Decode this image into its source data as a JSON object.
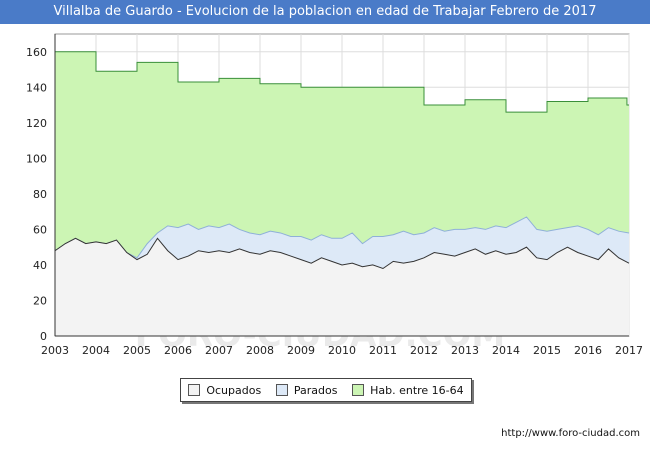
{
  "title": "Villalba de Guardo - Evolucion de la poblacion en edad de Trabajar Febrero de 2017",
  "watermark": "FORO-CIUDAD.COM",
  "source_url": "http://www.foro-ciudad.com",
  "colors": {
    "title_bg": "#4a7bc8",
    "hab": "#ccf5b4",
    "hab_line": "#3a8f3a",
    "parados": "#dde9f7",
    "parados_line": "#8fb0d8",
    "ocupados": "#f3f3f3",
    "ocupados_line": "#333333",
    "grid": "#dddddd"
  },
  "legend": [
    {
      "key": "ocupados",
      "label": "Ocupados"
    },
    {
      "key": "parados",
      "label": "Parados"
    },
    {
      "key": "hab",
      "label": "Hab. entre 16-64"
    }
  ],
  "chart_data": {
    "type": "area",
    "xlim": [
      2003,
      2017
    ],
    "ylim": [
      0,
      170
    ],
    "x_ticks": [
      2003,
      2004,
      2005,
      2006,
      2007,
      2008,
      2009,
      2010,
      2011,
      2012,
      2013,
      2014,
      2015,
      2016,
      2017
    ],
    "y_ticks": [
      0,
      20,
      40,
      60,
      80,
      100,
      120,
      140,
      160
    ],
    "grid": true,
    "legend_position": "bottom",
    "series": [
      {
        "key": "hab",
        "name": "Hab. entre 16-64",
        "step": true,
        "x": [
          2003,
          2004,
          2005,
          2006,
          2007,
          2008,
          2009,
          2010,
          2011,
          2012,
          2013,
          2014,
          2015,
          2016,
          2016.95
        ],
        "values": [
          160,
          149,
          154,
          143,
          145,
          142,
          140,
          140,
          140,
          130,
          133,
          126,
          132,
          134,
          130
        ]
      },
      {
        "key": "parados_total",
        "name": "Parados",
        "x": [
          2003,
          2003.25,
          2003.5,
          2003.75,
          2004,
          2004.25,
          2004.5,
          2004.75,
          2005,
          2005.25,
          2005.5,
          2005.75,
          2006,
          2006.25,
          2006.5,
          2006.75,
          2007,
          2007.25,
          2007.5,
          2007.75,
          2008,
          2008.25,
          2008.5,
          2008.75,
          2009,
          2009.25,
          2009.5,
          2009.75,
          2010,
          2010.25,
          2010.5,
          2010.75,
          2011,
          2011.25,
          2011.5,
          2011.75,
          2012,
          2012.25,
          2012.5,
          2012.75,
          2013,
          2013.25,
          2013.5,
          2013.75,
          2014,
          2014.25,
          2014.5,
          2014.75,
          2015,
          2015.25,
          2015.5,
          2015.75,
          2016,
          2016.25,
          2016.5,
          2016.75,
          2017
        ],
        "values": [
          48,
          52,
          55,
          52,
          53,
          52,
          54,
          47,
          44,
          52,
          58,
          62,
          61,
          63,
          60,
          62,
          61,
          63,
          60,
          58,
          57,
          59,
          58,
          56,
          56,
          54,
          57,
          55,
          55,
          58,
          52,
          56,
          56,
          57,
          59,
          57,
          58,
          61,
          59,
          60,
          60,
          61,
          60,
          62,
          61,
          64,
          67,
          60,
          59,
          60,
          61,
          62,
          60,
          57,
          61,
          59,
          58
        ]
      },
      {
        "key": "ocupados",
        "name": "Ocupados",
        "x": [
          2003,
          2003.25,
          2003.5,
          2003.75,
          2004,
          2004.25,
          2004.5,
          2004.75,
          2005,
          2005.25,
          2005.5,
          2005.75,
          2006,
          2006.25,
          2006.5,
          2006.75,
          2007,
          2007.25,
          2007.5,
          2007.75,
          2008,
          2008.25,
          2008.5,
          2008.75,
          2009,
          2009.25,
          2009.5,
          2009.75,
          2010,
          2010.25,
          2010.5,
          2010.75,
          2011,
          2011.25,
          2011.5,
          2011.75,
          2012,
          2012.25,
          2012.5,
          2012.75,
          2013,
          2013.25,
          2013.5,
          2013.75,
          2014,
          2014.25,
          2014.5,
          2014.75,
          2015,
          2015.25,
          2015.5,
          2015.75,
          2016,
          2016.25,
          2016.5,
          2016.75,
          2017
        ],
        "values": [
          48,
          52,
          55,
          52,
          53,
          52,
          54,
          47,
          43,
          46,
          55,
          48,
          43,
          45,
          48,
          47,
          48,
          47,
          49,
          47,
          46,
          48,
          47,
          45,
          43,
          41,
          44,
          42,
          40,
          41,
          39,
          40,
          38,
          42,
          41,
          42,
          44,
          47,
          46,
          45,
          47,
          49,
          46,
          48,
          46,
          47,
          50,
          44,
          43,
          47,
          50,
          47,
          45,
          43,
          49,
          44,
          41
        ]
      }
    ]
  }
}
